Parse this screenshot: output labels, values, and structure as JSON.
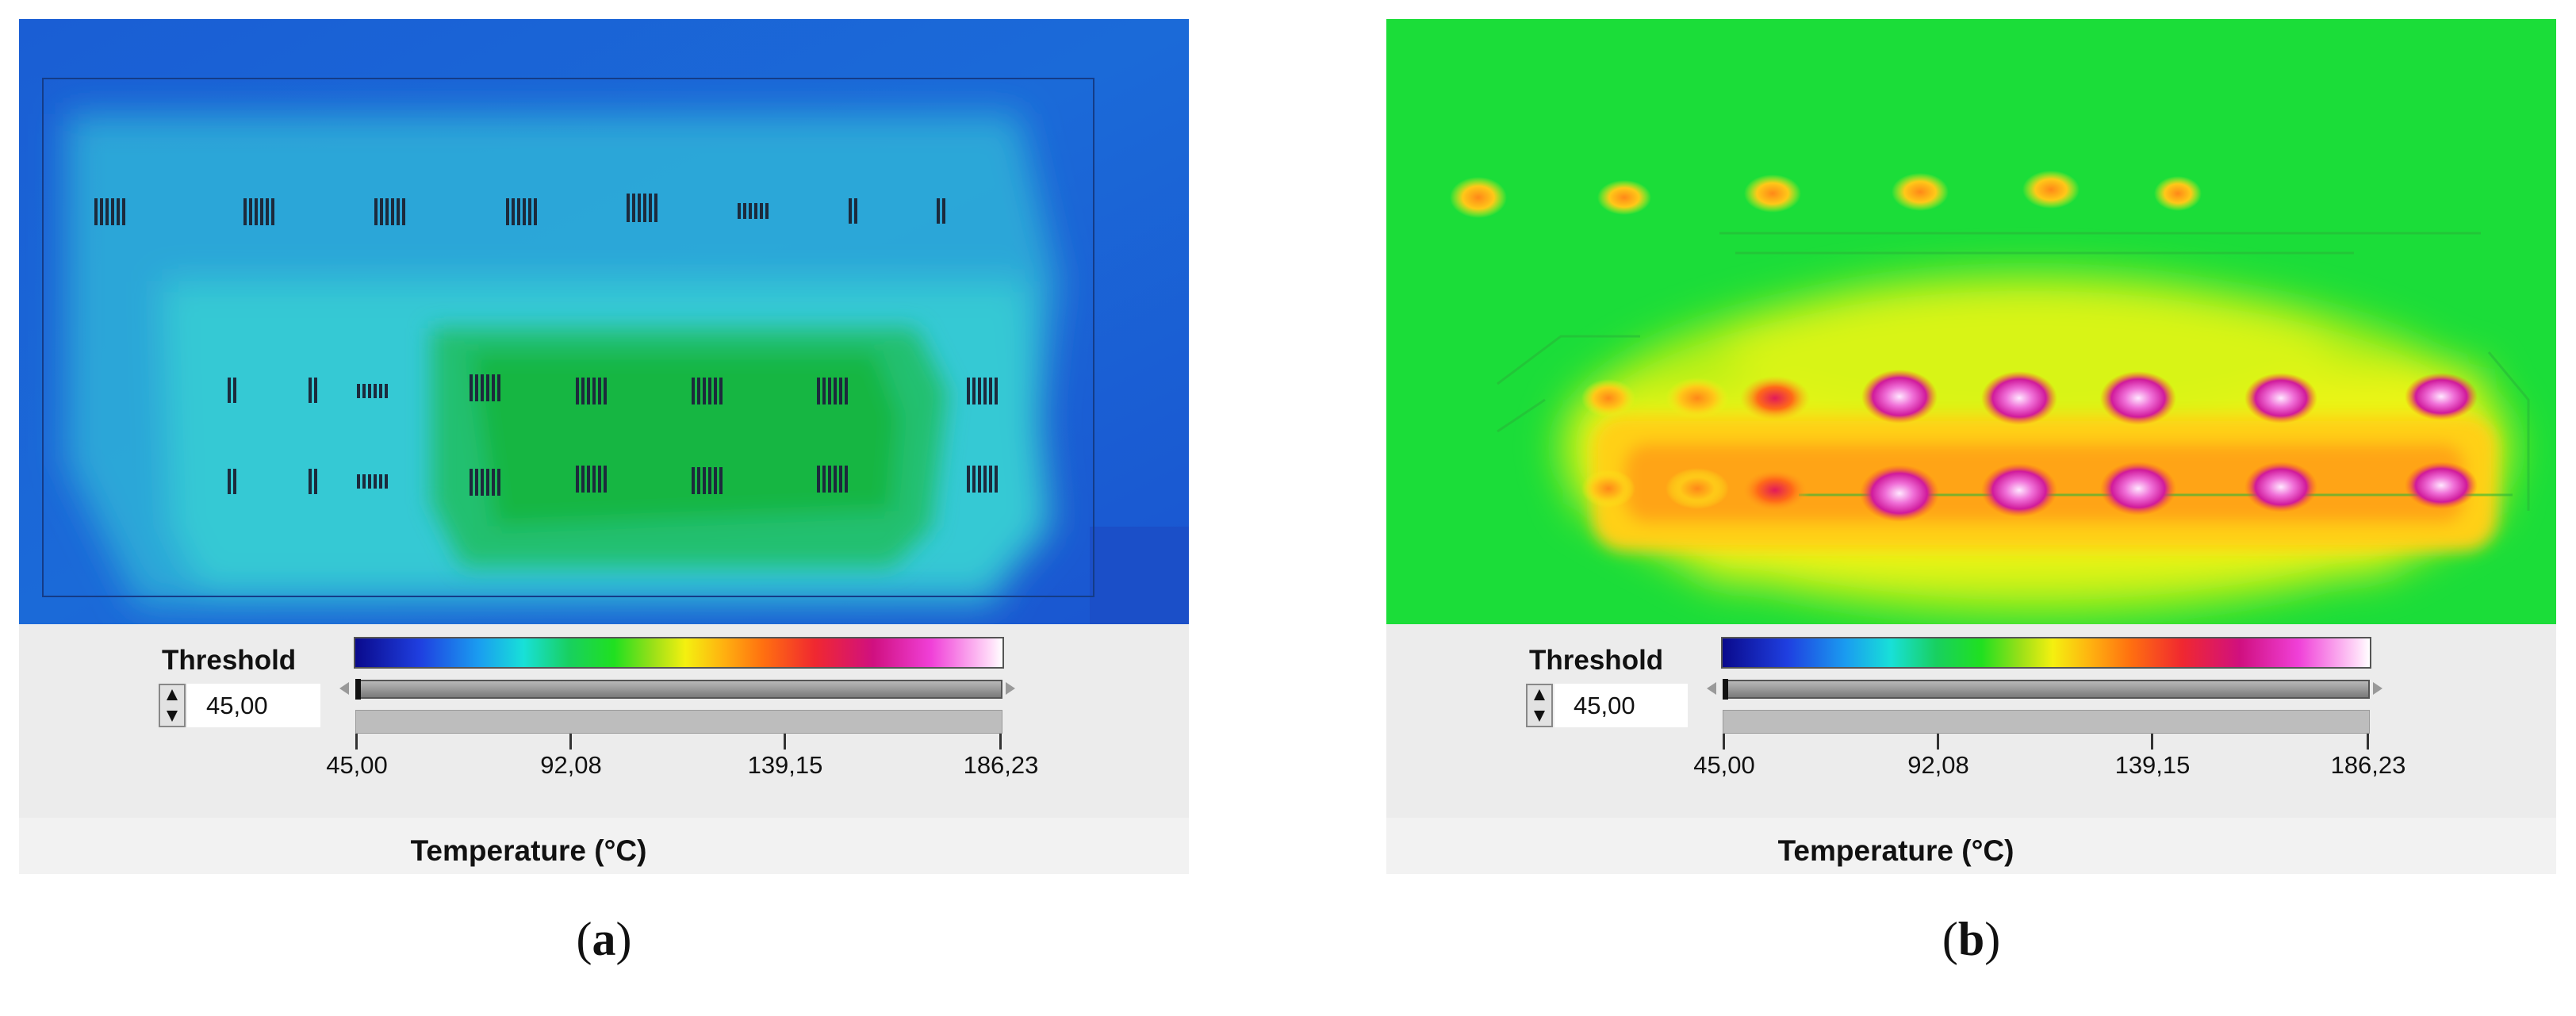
{
  "colors": {
    "panel_a_background": "#1a66d8",
    "panel_a_cool": "#35c7d7",
    "panel_a_warm": "#18b840",
    "panel_b_background": "#1ce032",
    "panel_b_warm": "#f0f018",
    "panel_b_hot": "#ff8a10",
    "panel_b_hotspot": "#d81aa8",
    "legend_background": "#ececec"
  },
  "panels": [
    {
      "caption_letter": "a",
      "threshold_label": "Threshold",
      "threshold_value": "45,00",
      "temperature_ticks": [
        "45,00",
        "92,08",
        "139,15",
        "186,23"
      ],
      "axis_title": "Temperature (°C)",
      "slider_fraction": 0.0
    },
    {
      "caption_letter": "b",
      "threshold_label": "Threshold",
      "threshold_value": "45,00",
      "temperature_ticks": [
        "45,00",
        "92,08",
        "139,15",
        "186,23"
      ],
      "axis_title": "Temperature (°C)",
      "slider_fraction": 0.0
    }
  ]
}
